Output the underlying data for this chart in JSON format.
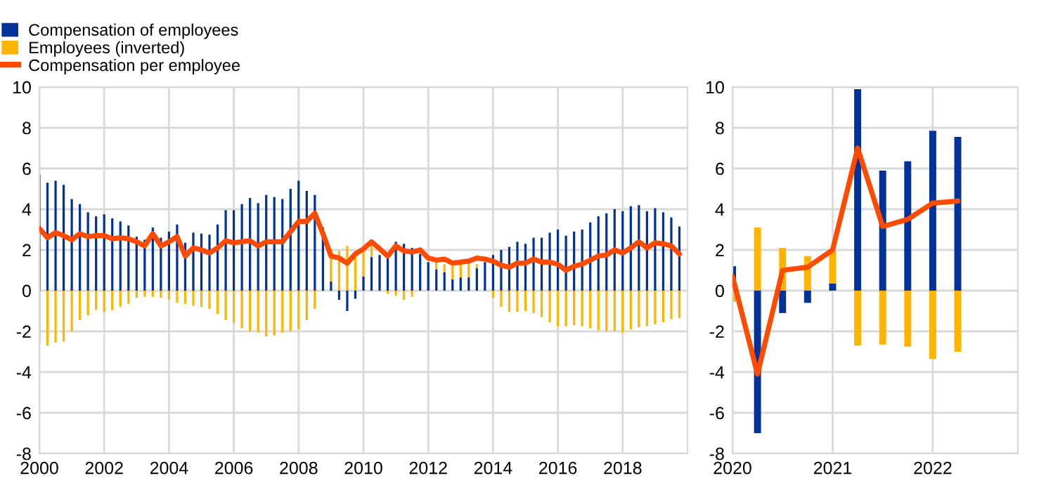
{
  "chart_data": [
    {
      "type": "bar",
      "stacked": true,
      "legend": "top left",
      "grid": true,
      "x": [
        2000,
        2000.25,
        2000.5,
        2000.75,
        2001,
        2001.25,
        2001.5,
        2001.75,
        2002,
        2002.25,
        2002.5,
        2002.75,
        2003,
        2003.25,
        2003.5,
        2003.75,
        2004,
        2004.25,
        2004.5,
        2004.75,
        2005,
        2005.25,
        2005.5,
        2005.75,
        2006,
        2006.25,
        2006.5,
        2006.75,
        2007,
        2007.25,
        2007.5,
        2007.75,
        2008,
        2008.25,
        2008.5,
        2008.75,
        2009,
        2009.25,
        2009.5,
        2009.75,
        2010,
        2010.25,
        2010.5,
        2010.75,
        2011,
        2011.25,
        2011.5,
        2011.75,
        2012,
        2012.25,
        2012.5,
        2012.75,
        2013,
        2013.25,
        2013.5,
        2013.75,
        2014,
        2014.25,
        2014.5,
        2014.75,
        2015,
        2015.25,
        2015.5,
        2015.75,
        2016,
        2016.25,
        2016.5,
        2016.75,
        2017,
        2017.25,
        2017.5,
        2017.75,
        2018,
        2018.25,
        2018.5,
        2018.75,
        2019,
        2019.25,
        2019.5,
        2019.75
      ],
      "series": [
        {
          "name": "Compensation of employees",
          "color": "#003299",
          "values": [
            5.7,
            5.3,
            5.4,
            5.2,
            4.5,
            4.25,
            3.85,
            3.65,
            3.75,
            3.55,
            3.4,
            3.2,
            2.65,
            2.5,
            3.1,
            2.6,
            2.9,
            3.25,
            2.35,
            2.85,
            2.8,
            2.75,
            3.25,
            3.95,
            3.95,
            4.25,
            4.55,
            4.3,
            4.7,
            4.6,
            4.5,
            5.0,
            5.4,
            4.9,
            4.7,
            3.1,
            0.45,
            -0.45,
            -1.0,
            -0.4,
            0.7,
            1.65,
            1.75,
            1.6,
            2.4,
            2.3,
            2.1,
            1.8,
            1.4,
            1.05,
            0.9,
            0.55,
            0.65,
            0.65,
            1.1,
            1.4,
            1.75,
            2.0,
            2.15,
            2.4,
            2.3,
            2.6,
            2.6,
            2.85,
            3.0,
            2.7,
            2.9,
            3.0,
            3.35,
            3.65,
            3.8,
            4.0,
            3.9,
            4.15,
            4.2,
            3.9,
            4.05,
            3.85,
            3.6,
            3.15
          ]
        },
        {
          "name": "Employees (inverted)",
          "color": "#ffb400",
          "values": [
            -2.6,
            -2.7,
            -2.55,
            -2.5,
            -2.0,
            -1.45,
            -1.2,
            -0.95,
            -1.05,
            -0.95,
            -0.8,
            -0.65,
            -0.35,
            -0.3,
            -0.3,
            -0.35,
            -0.45,
            -0.6,
            -0.65,
            -0.75,
            -0.8,
            -0.9,
            -1.15,
            -1.45,
            -1.6,
            -1.85,
            -2.0,
            -2.05,
            -2.25,
            -2.2,
            -2.05,
            -2.0,
            -1.9,
            -1.45,
            -0.9,
            0,
            1.55,
            1.95,
            2.2,
            1.95,
            1.3,
            0.55,
            0,
            -0.15,
            -0.25,
            -0.45,
            -0.3,
            0,
            0,
            0.35,
            0.4,
            0.7,
            0.65,
            0.7,
            0.2,
            0,
            -0.35,
            -0.8,
            -1.05,
            -1.05,
            -1.0,
            -1.1,
            -1.3,
            -1.55,
            -1.75,
            -1.75,
            -1.7,
            -1.75,
            -1.85,
            -1.95,
            -2.0,
            -2.0,
            -2.05,
            -1.9,
            -1.8,
            -1.75,
            -1.65,
            -1.55,
            -1.4,
            -1.35
          ]
        },
        {
          "name": "Compensation per employee",
          "type": "line",
          "color": "#ff4b00",
          "values": [
            3.05,
            2.6,
            2.85,
            2.7,
            2.5,
            2.8,
            2.65,
            2.7,
            2.7,
            2.55,
            2.6,
            2.55,
            2.4,
            2.2,
            2.8,
            2.2,
            2.4,
            2.65,
            1.7,
            2.1,
            2.0,
            1.85,
            2.1,
            2.45,
            2.35,
            2.4,
            2.45,
            2.2,
            2.4,
            2.4,
            2.4,
            2.9,
            3.4,
            3.4,
            3.8,
            2.8,
            1.7,
            1.6,
            1.35,
            1.8,
            2.05,
            2.4,
            2.05,
            1.7,
            2.2,
            1.95,
            1.9,
            2.0,
            1.6,
            1.5,
            1.55,
            1.35,
            1.4,
            1.45,
            1.6,
            1.55,
            1.45,
            1.25,
            1.15,
            1.35,
            1.35,
            1.55,
            1.4,
            1.4,
            1.3,
            1.0,
            1.2,
            1.3,
            1.5,
            1.7,
            1.75,
            2.0,
            1.85,
            2.1,
            2.4,
            2.1,
            2.35,
            2.3,
            2.2,
            1.8
          ]
        }
      ],
      "xlim": [
        2000,
        2020
      ],
      "xticks": [
        2000,
        2002,
        2004,
        2006,
        2008,
        2010,
        2012,
        2014,
        2016,
        2018
      ],
      "ylim": [
        -8,
        10
      ],
      "yticks": [
        -8,
        -6,
        -4,
        -2,
        0,
        2,
        4,
        6,
        8,
        10
      ]
    },
    {
      "type": "bar",
      "stacked": true,
      "grid": true,
      "x": [
        2020,
        2020.25,
        2020.5,
        2020.75,
        2021,
        2021.25,
        2021.5,
        2021.75,
        2022,
        2022.25
      ],
      "series": [
        {
          "color": "#003299",
          "values": [
            1.2,
            -7.0,
            -1.1,
            -0.6,
            0.35,
            9.9,
            5.9,
            6.35,
            7.85,
            7.55
          ]
        },
        {
          "color": "#ffb400",
          "values": [
            -0.55,
            3.1,
            2.1,
            1.7,
            1.6,
            -2.7,
            -2.65,
            -2.75,
            -3.35,
            -3.0
          ]
        },
        {
          "type": "line",
          "color": "#ff4b00",
          "values": [
            0.7,
            -4.1,
            1.0,
            1.15,
            2.0,
            7.0,
            3.15,
            3.5,
            4.3,
            4.4
          ]
        }
      ],
      "xlim": [
        2020,
        2022.85
      ],
      "xticks": [
        2020,
        2021,
        2022
      ],
      "ylim": [
        -8,
        10
      ],
      "yticks": [
        -8,
        -6,
        -4,
        -2,
        0,
        2,
        4,
        6,
        8,
        10
      ]
    }
  ]
}
